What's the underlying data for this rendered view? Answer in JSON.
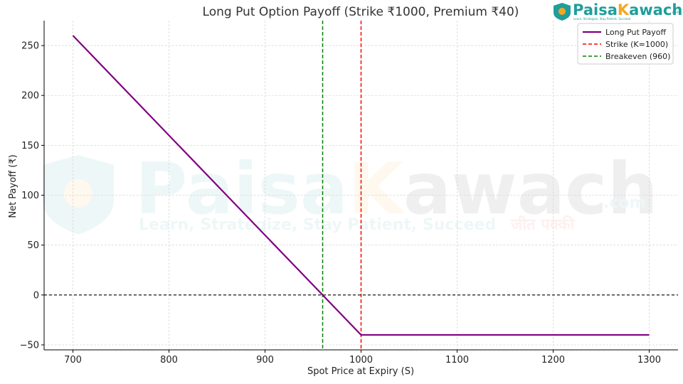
{
  "chart_data": {
    "type": "line",
    "title": "Long Put Option Payoff (Strike ₹1000, Premium ₹40)",
    "xlabel": "Spot Price at Expiry (S)",
    "ylabel": "Net Payoff (₹)",
    "xlim": [
      670,
      1330
    ],
    "ylim": [
      -55,
      275
    ],
    "xticks": [
      700,
      800,
      900,
      1000,
      1100,
      1200,
      1300
    ],
    "yticks": [
      -50,
      0,
      50,
      100,
      150,
      200,
      250
    ],
    "grid": true,
    "legend_position": "top-right",
    "series": [
      {
        "name": "Long Put Payoff",
        "style": "solid",
        "color": "#800080",
        "x": [
          700,
          1000,
          1300
        ],
        "y": [
          260,
          -40,
          -40
        ]
      }
    ],
    "reference_lines": [
      {
        "name": "Strike (K=1000)",
        "orientation": "vertical",
        "value": 1000,
        "color": "#ff0000",
        "style": "dashed"
      },
      {
        "name": "Breakeven (960)",
        "orientation": "vertical",
        "value": 960,
        "color": "#008000",
        "style": "dashed"
      },
      {
        "name": "",
        "orientation": "horizontal",
        "value": 0,
        "color": "#000000",
        "style": "dashed"
      }
    ]
  },
  "branding": {
    "logo_text_part1": "Paisa",
    "logo_text_part2": "K",
    "logo_text_part3": "awach",
    "logo_text_suffix": ".com",
    "logo_tagline": "Learn, Strategize, Stay Patient, Succeed",
    "watermark_text_part1": "Paisa",
    "watermark_text_part2": "K",
    "watermark_text_part3": "awach",
    "watermark_suffix": ".com",
    "watermark_tagline": "Learn, Strategize, Stay Patient, Succeed",
    "watermark_hindi": "जीत पक्की",
    "colors": {
      "teal": "#1f9e9a",
      "orange": "#f5a623"
    }
  }
}
